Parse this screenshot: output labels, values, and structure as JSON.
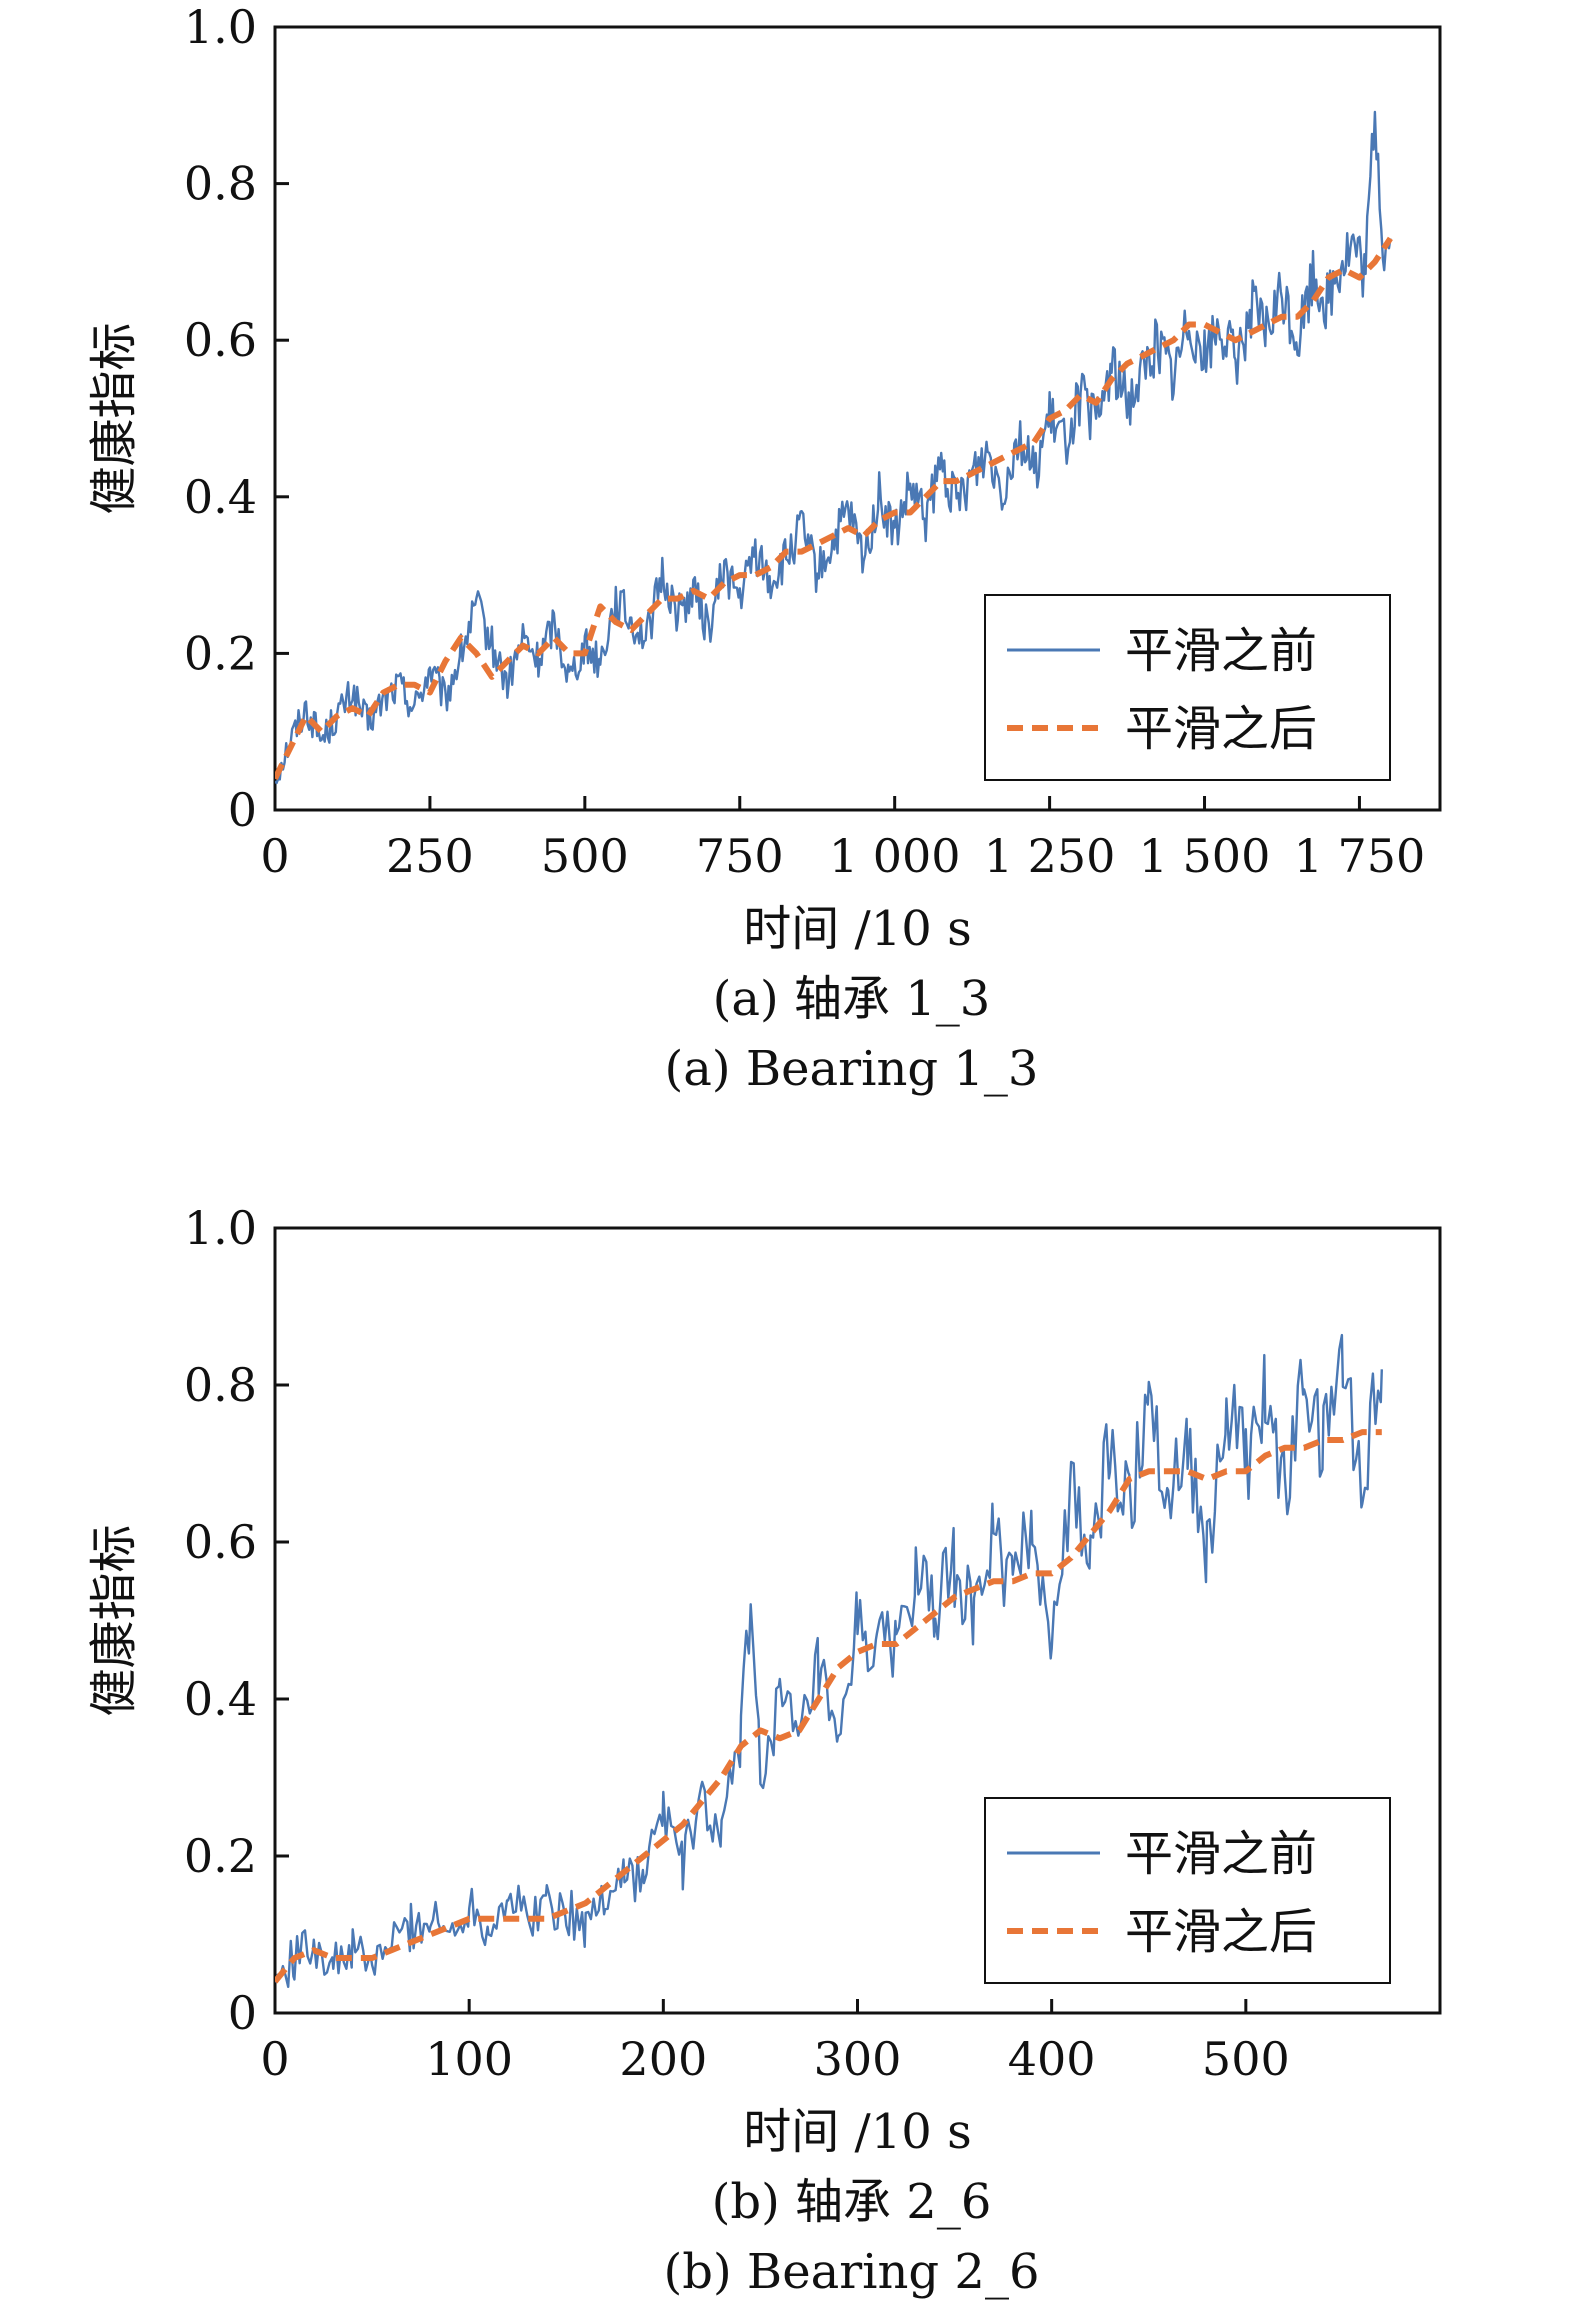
{
  "chart_data": [
    {
      "type": "line",
      "caption_cn": "(a) 轴承 1_3",
      "caption_en": "(a) Bearing 1_3",
      "xlabel": "时间 /10 s",
      "ylabel": "健康指标",
      "xlim": [
        0,
        1880
      ],
      "ylim": [
        0,
        1.0
      ],
      "xticks": [
        0,
        250,
        500,
        750,
        1000,
        1250,
        1500,
        1750
      ],
      "xtick_labels": [
        "0",
        "250",
        "500",
        "750",
        "1 000",
        "1 250",
        "1 500",
        "1 750"
      ],
      "yticks": [
        0,
        0.2,
        0.4,
        0.6,
        0.8,
        1.0
      ],
      "ytick_labels": [
        "0",
        "0.2",
        "0.4",
        "0.6",
        "0.8",
        "1.0"
      ],
      "grid": false,
      "legend_position": "bottom-right",
      "x_end": 1800,
      "series": [
        {
          "name": "平滑之前",
          "style": "solid",
          "color": "#4a78b4",
          "x": [
            0,
            25,
            50,
            75,
            100,
            125,
            150,
            175,
            200,
            225,
            250,
            275,
            300,
            325,
            350,
            375,
            400,
            425,
            450,
            475,
            500,
            525,
            550,
            575,
            600,
            625,
            650,
            675,
            700,
            725,
            750,
            775,
            800,
            825,
            850,
            875,
            900,
            925,
            950,
            975,
            1000,
            1025,
            1050,
            1075,
            1100,
            1125,
            1150,
            1175,
            1200,
            1225,
            1250,
            1275,
            1300,
            1325,
            1350,
            1375,
            1400,
            1425,
            1450,
            1475,
            1500,
            1525,
            1550,
            1575,
            1600,
            1625,
            1650,
            1675,
            1700,
            1720,
            1740,
            1760,
            1775,
            1790,
            1800
          ],
          "y": [
            0.04,
            0.09,
            0.13,
            0.09,
            0.12,
            0.15,
            0.11,
            0.14,
            0.16,
            0.13,
            0.18,
            0.14,
            0.2,
            0.26,
            0.21,
            0.16,
            0.22,
            0.19,
            0.24,
            0.17,
            0.21,
            0.19,
            0.27,
            0.24,
            0.22,
            0.3,
            0.25,
            0.28,
            0.23,
            0.31,
            0.27,
            0.33,
            0.29,
            0.32,
            0.36,
            0.3,
            0.34,
            0.38,
            0.32,
            0.4,
            0.35,
            0.41,
            0.37,
            0.44,
            0.39,
            0.43,
            0.46,
            0.41,
            0.48,
            0.43,
            0.5,
            0.47,
            0.53,
            0.49,
            0.57,
            0.52,
            0.56,
            0.6,
            0.55,
            0.63,
            0.58,
            0.62,
            0.57,
            0.64,
            0.61,
            0.66,
            0.6,
            0.68,
            0.65,
            0.7,
            0.72,
            0.68,
            0.9,
            0.7,
            0.73
          ]
        },
        {
          "name": "平滑之后",
          "style": "dashed",
          "color": "#e87637",
          "x": [
            0,
            25,
            50,
            75,
            100,
            125,
            150,
            175,
            200,
            225,
            250,
            275,
            300,
            325,
            350,
            375,
            400,
            425,
            450,
            475,
            500,
            525,
            550,
            575,
            600,
            625,
            650,
            675,
            700,
            725,
            750,
            775,
            800,
            825,
            850,
            875,
            900,
            925,
            950,
            975,
            1000,
            1025,
            1050,
            1075,
            1100,
            1125,
            1150,
            1175,
            1200,
            1225,
            1250,
            1275,
            1300,
            1325,
            1350,
            1375,
            1400,
            1425,
            1450,
            1475,
            1500,
            1525,
            1550,
            1575,
            1600,
            1625,
            1650,
            1675,
            1700,
            1725,
            1750,
            1775,
            1800
          ],
          "y": [
            0.04,
            0.08,
            0.12,
            0.1,
            0.12,
            0.13,
            0.12,
            0.15,
            0.16,
            0.16,
            0.15,
            0.19,
            0.22,
            0.2,
            0.17,
            0.19,
            0.21,
            0.2,
            0.22,
            0.2,
            0.2,
            0.26,
            0.24,
            0.23,
            0.25,
            0.27,
            0.27,
            0.28,
            0.27,
            0.29,
            0.3,
            0.3,
            0.31,
            0.33,
            0.33,
            0.34,
            0.35,
            0.36,
            0.35,
            0.37,
            0.38,
            0.38,
            0.4,
            0.42,
            0.42,
            0.43,
            0.44,
            0.45,
            0.46,
            0.47,
            0.5,
            0.51,
            0.53,
            0.52,
            0.55,
            0.57,
            0.58,
            0.59,
            0.6,
            0.62,
            0.62,
            0.61,
            0.6,
            0.61,
            0.62,
            0.63,
            0.63,
            0.65,
            0.68,
            0.69,
            0.68,
            0.7,
            0.73
          ]
        }
      ]
    },
    {
      "type": "line",
      "caption_cn": "(b) 轴承 2_6",
      "caption_en": "(b) Bearing 2_6",
      "xlabel": "时间 /10 s",
      "ylabel": "健康指标",
      "xlim": [
        0,
        600
      ],
      "ylim": [
        0,
        1.0
      ],
      "xticks": [
        0,
        100,
        200,
        300,
        400,
        500
      ],
      "xtick_labels": [
        "0",
        "100",
        "200",
        "300",
        "400",
        "500"
      ],
      "yticks": [
        0,
        0.2,
        0.4,
        0.6,
        0.8,
        1.0
      ],
      "ytick_labels": [
        "0",
        "0.2",
        "0.4",
        "0.6",
        "0.8",
        "1.0"
      ],
      "grid": false,
      "legend_position": "bottom-right",
      "x_end": 570,
      "series": [
        {
          "name": "平滑之前",
          "style": "solid",
          "color": "#4a78b4",
          "x": [
            0,
            10,
            20,
            30,
            40,
            50,
            60,
            70,
            80,
            90,
            100,
            110,
            120,
            130,
            140,
            150,
            160,
            170,
            180,
            190,
            200,
            210,
            220,
            230,
            240,
            245,
            250,
            260,
            270,
            280,
            290,
            300,
            310,
            320,
            330,
            340,
            350,
            360,
            370,
            380,
            390,
            400,
            410,
            420,
            430,
            440,
            450,
            460,
            470,
            480,
            490,
            500,
            510,
            520,
            530,
            540,
            550,
            560,
            570
          ],
          "y": [
            0.04,
            0.07,
            0.09,
            0.06,
            0.08,
            0.06,
            0.09,
            0.11,
            0.12,
            0.1,
            0.14,
            0.11,
            0.15,
            0.12,
            0.14,
            0.13,
            0.11,
            0.15,
            0.18,
            0.17,
            0.26,
            0.19,
            0.27,
            0.22,
            0.36,
            0.52,
            0.31,
            0.4,
            0.34,
            0.44,
            0.32,
            0.5,
            0.46,
            0.48,
            0.55,
            0.51,
            0.57,
            0.5,
            0.61,
            0.54,
            0.62,
            0.48,
            0.66,
            0.58,
            0.72,
            0.64,
            0.8,
            0.66,
            0.74,
            0.58,
            0.77,
            0.7,
            0.78,
            0.66,
            0.8,
            0.72,
            0.83,
            0.68,
            0.82
          ]
        },
        {
          "name": "平滑之后",
          "style": "dashed",
          "color": "#e87637",
          "x": [
            0,
            10,
            20,
            30,
            40,
            50,
            60,
            70,
            80,
            90,
            100,
            110,
            120,
            130,
            140,
            150,
            160,
            170,
            180,
            190,
            200,
            210,
            220,
            230,
            240,
            250,
            260,
            270,
            280,
            290,
            300,
            310,
            320,
            330,
            340,
            350,
            360,
            370,
            380,
            390,
            400,
            410,
            420,
            430,
            440,
            450,
            460,
            470,
            480,
            490,
            500,
            510,
            520,
            530,
            540,
            550,
            560,
            570
          ],
          "y": [
            0.04,
            0.07,
            0.08,
            0.07,
            0.07,
            0.07,
            0.08,
            0.09,
            0.1,
            0.11,
            0.12,
            0.12,
            0.12,
            0.12,
            0.12,
            0.13,
            0.14,
            0.16,
            0.18,
            0.2,
            0.22,
            0.24,
            0.27,
            0.3,
            0.34,
            0.36,
            0.35,
            0.36,
            0.4,
            0.44,
            0.46,
            0.47,
            0.47,
            0.49,
            0.51,
            0.53,
            0.54,
            0.55,
            0.55,
            0.56,
            0.56,
            0.58,
            0.61,
            0.64,
            0.68,
            0.69,
            0.69,
            0.69,
            0.68,
            0.69,
            0.69,
            0.71,
            0.72,
            0.72,
            0.73,
            0.73,
            0.74,
            0.74
          ]
        }
      ]
    }
  ]
}
